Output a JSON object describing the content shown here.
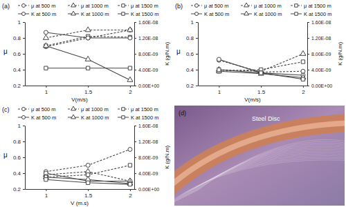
{
  "chart_data": [
    {
      "type": "line",
      "title": "(a)",
      "legend": "top",
      "grid": false,
      "xlabel": "V(m/s)",
      "ylabel": "μ",
      "y2label": "K (g/N.m)",
      "x": [
        1,
        1.5,
        2
      ],
      "xlim": [
        0.75,
        2.05
      ],
      "xticks": [
        1,
        1.5,
        2
      ],
      "ylim": [
        0.2,
        1
      ],
      "yticks": [
        0.2,
        0.4,
        0.6,
        0.8,
        1
      ],
      "y2lim": [
        0,
        1.6e-08
      ],
      "y2ticks": [
        {
          "value": 0,
          "label": "0.00E+00"
        },
        {
          "value": 4e-09,
          "label": "4.00E-09"
        },
        {
          "value": 8e-09,
          "label": "8.00E-09"
        },
        {
          "value": 1.2e-08,
          "label": "1.20E-08"
        },
        {
          "value": 1.6e-08,
          "label": "1.60E-08"
        }
      ],
      "series": [
        {
          "name": "μ at 500 m",
          "color": "#444444",
          "marker": "circle",
          "line_style": "dashed",
          "values": [
            0.69,
            0.8,
            0.9
          ]
        },
        {
          "name": "μ at 1000 m",
          "color": "#444444",
          "marker": "triangle",
          "line_style": "dashed",
          "values": [
            0.8,
            0.9,
            0.9
          ]
        },
        {
          "name": "μ at 1500 m",
          "color": "#444444",
          "marker": "square",
          "line_style": "dashed",
          "values": [
            0.7,
            0.82,
            0.81
          ]
        },
        {
          "name": "K at 500 m",
          "color": "#444444",
          "marker": "circle",
          "line_style": "solid",
          "axis": "y2",
          "values": [
            1.34e-08,
            1.2e-08,
            1.2e-08
          ]
        },
        {
          "name": "K at 1000 m",
          "color": "#444444",
          "marker": "triangle",
          "line_style": "solid",
          "axis": "y2",
          "values": [
            1e-08,
            6.6e-09,
            1.4e-09
          ]
        },
        {
          "name": "K at 1500 m",
          "color": "#444444",
          "marker": "square",
          "line_style": "solid",
          "axis": "y2",
          "values": [
            4.4e-09,
            4.4e-09,
            4.4e-09
          ]
        }
      ]
    },
    {
      "type": "line",
      "title": "(b)",
      "legend": "top",
      "grid": false,
      "xlabel": "V(m/s)",
      "ylabel": "μ",
      "y2label": "K (g/N.m)",
      "x": [
        1,
        1.5,
        2
      ],
      "xlim": [
        0.75,
        2.05
      ],
      "xticks": [
        1,
        1.5,
        2
      ],
      "ylim": [
        0.2,
        1
      ],
      "yticks": [
        0.2,
        0.4,
        0.6,
        0.8,
        1
      ],
      "y2lim": [
        0,
        1.6e-08
      ],
      "y2ticks": [
        {
          "value": 0,
          "label": "0.00E+00"
        },
        {
          "value": 4e-09,
          "label": "4.00E-09"
        },
        {
          "value": 8e-09,
          "label": "8.00E-09"
        },
        {
          "value": 1.2e-08,
          "label": "1.20E-08"
        },
        {
          "value": 1.6e-08,
          "label": "1.60E-08"
        }
      ],
      "series": [
        {
          "name": "μ at 500 m",
          "color": "#444444",
          "marker": "circle",
          "line_style": "dashed",
          "values": [
            0.52,
            0.37,
            0.38
          ]
        },
        {
          "name": "μ at 1000 m",
          "color": "#444444",
          "marker": "triangle",
          "line_style": "dashed",
          "values": [
            0.4,
            0.38,
            0.6
          ]
        },
        {
          "name": "μ at 1500 m",
          "color": "#444444",
          "marker": "square",
          "line_style": "dashed",
          "values": [
            0.38,
            0.4,
            0.5
          ]
        },
        {
          "name": "K at 500 m",
          "color": "#444444",
          "marker": "circle",
          "line_style": "solid",
          "axis": "y2",
          "values": [
            6.6e-09,
            3.2e-09,
            2.6e-09
          ]
        },
        {
          "name": "K at 1000 m",
          "color": "#444444",
          "marker": "triangle",
          "line_style": "solid",
          "axis": "y2",
          "values": [
            3.6e-09,
            3e-09,
            2e-09
          ]
        },
        {
          "name": "K at 1500 m",
          "color": "#444444",
          "marker": "square",
          "line_style": "solid",
          "axis": "y2",
          "values": [
            4e-09,
            3.2e-09,
            1.6e-09
          ]
        }
      ]
    },
    {
      "type": "line",
      "title": "(c)",
      "legend": "top",
      "grid": false,
      "xlabel": "V (m.s)",
      "ylabel": "μ",
      "y2label": "K (g/N.m)",
      "x": [
        1,
        1.5,
        2
      ],
      "xlim": [
        0.75,
        2.05
      ],
      "xticks": [
        1,
        1.5,
        2
      ],
      "ylim": [
        0.2,
        1
      ],
      "yticks": [
        0.2,
        0.4,
        0.6,
        0.8,
        1
      ],
      "y2lim": [
        0,
        1.6e-08
      ],
      "y2ticks": [
        {
          "value": 0,
          "label": "0.00E+00"
        },
        {
          "value": 4e-09,
          "label": "4.00E-09"
        },
        {
          "value": 8e-09,
          "label": "8.00E-09"
        },
        {
          "value": 1.2e-08,
          "label": "1.20E-08"
        },
        {
          "value": 1.6e-08,
          "label": "1.60E-08"
        }
      ],
      "series": [
        {
          "name": "μ at 500 m",
          "color": "#444444",
          "marker": "circle",
          "line_style": "dashed",
          "values": [
            0.42,
            0.5,
            0.7
          ]
        },
        {
          "name": "μ at 1000 m",
          "color": "#444444",
          "marker": "triangle",
          "line_style": "dashed",
          "values": [
            0.38,
            0.42,
            0.3
          ]
        },
        {
          "name": "μ at 1500 m",
          "color": "#444444",
          "marker": "square",
          "line_style": "dashed",
          "values": [
            0.35,
            0.38,
            0.5
          ]
        },
        {
          "name": "K at 500 m",
          "color": "#444444",
          "marker": "circle",
          "line_style": "solid",
          "axis": "y2",
          "values": [
            4e-09,
            2e-09,
            2e-09
          ]
        },
        {
          "name": "K at 1000 m",
          "color": "#444444",
          "marker": "triangle",
          "line_style": "solid",
          "axis": "y2",
          "values": [
            3e-09,
            2.4e-09,
            1.4e-09
          ]
        },
        {
          "name": "K at 1500 m",
          "color": "#444444",
          "marker": "square",
          "line_style": "solid",
          "axis": "y2",
          "values": [
            2.4e-09,
            1.6e-09,
            1.2e-09
          ]
        }
      ]
    }
  ],
  "photo": {
    "label": "(d)",
    "text": "Steel Disc"
  }
}
